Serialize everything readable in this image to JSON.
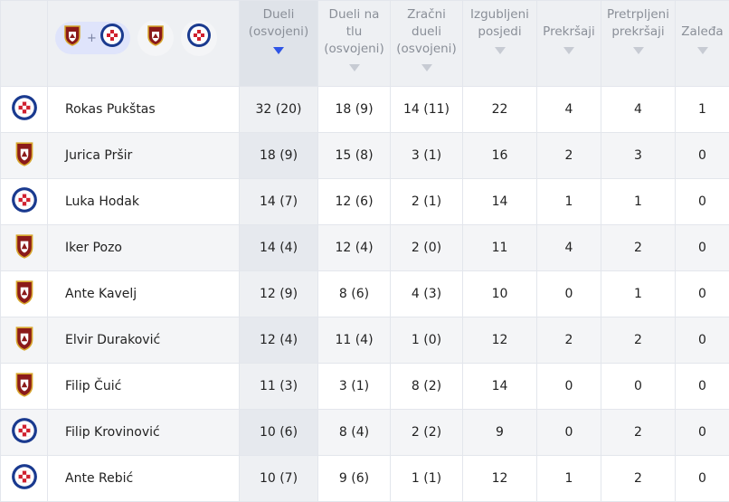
{
  "header": {
    "columns": [
      {
        "label": "Dueli (osvojeni)",
        "lines": [
          "Dueli",
          "(osvojeni)"
        ],
        "active": true
      },
      {
        "label": "Dueli na tlu (osvojeni)",
        "lines": [
          "Dueli na",
          "tlu",
          "(osvojeni)"
        ],
        "active": false
      },
      {
        "label": "Zračni dueli (osvojeni)",
        "lines": [
          "Zračni",
          "dueli",
          "(osvojeni)"
        ],
        "active": false
      },
      {
        "label": "Izgubljeni posjedi",
        "lines": [
          "Izgubljeni",
          "posjedi"
        ],
        "active": false
      },
      {
        "label": "Prekršaji",
        "lines": [
          "Prekršaji"
        ],
        "active": false
      },
      {
        "label": "Pretrpljeni prekršaji",
        "lines": [
          "Pretrpljeni",
          "prekršaji"
        ],
        "active": false
      },
      {
        "label": "Zaleđa",
        "lines": [
          "Zaleđa"
        ],
        "active": false
      }
    ],
    "filter": {
      "plus": "+",
      "options": [
        "both-teams",
        "gorica",
        "hajduk"
      ]
    }
  },
  "teams": {
    "hajduk": {
      "name": "Hajduk Split",
      "colors": [
        "#1a3a8f",
        "#d0202e",
        "#ffffff"
      ]
    },
    "gorica": {
      "name": "HNK Gorica",
      "colors": [
        "#8b1a1a",
        "#d6a52b",
        "#1a1a1a"
      ]
    }
  },
  "rows": [
    {
      "team": "hajduk",
      "player": "Rokas Pukštas",
      "duels": "32 (20)",
      "ground": "18 (9)",
      "aerial": "14 (11)",
      "lost": "22",
      "fouls": "4",
      "fouled": "4",
      "offsides": "1"
    },
    {
      "team": "gorica",
      "player": "Jurica Pršir",
      "duels": "18 (9)",
      "ground": "15 (8)",
      "aerial": "3 (1)",
      "lost": "16",
      "fouls": "2",
      "fouled": "3",
      "offsides": "0"
    },
    {
      "team": "hajduk",
      "player": "Luka Hodak",
      "duels": "14 (7)",
      "ground": "12 (6)",
      "aerial": "2 (1)",
      "lost": "14",
      "fouls": "1",
      "fouled": "1",
      "offsides": "0"
    },
    {
      "team": "gorica",
      "player": "Iker Pozo",
      "duels": "14 (4)",
      "ground": "12 (4)",
      "aerial": "2 (0)",
      "lost": "11",
      "fouls": "4",
      "fouled": "2",
      "offsides": "0"
    },
    {
      "team": "gorica",
      "player": "Ante Kavelj",
      "duels": "12 (9)",
      "ground": "8 (6)",
      "aerial": "4 (3)",
      "lost": "10",
      "fouls": "0",
      "fouled": "1",
      "offsides": "0"
    },
    {
      "team": "gorica",
      "player": "Elvir Duraković",
      "duels": "12 (4)",
      "ground": "11 (4)",
      "aerial": "1 (0)",
      "lost": "12",
      "fouls": "2",
      "fouled": "2",
      "offsides": "0"
    },
    {
      "team": "gorica",
      "player": "Filip Čuić",
      "duels": "11 (3)",
      "ground": "3 (1)",
      "aerial": "8 (2)",
      "lost": "14",
      "fouls": "0",
      "fouled": "0",
      "offsides": "0"
    },
    {
      "team": "hajduk",
      "player": "Filip Krovinović",
      "duels": "10 (6)",
      "ground": "8 (4)",
      "aerial": "2 (2)",
      "lost": "9",
      "fouls": "0",
      "fouled": "2",
      "offsides": "0"
    },
    {
      "team": "hajduk",
      "player": "Ante Rebić",
      "duels": "10 (7)",
      "ground": "9 (6)",
      "aerial": "1 (1)",
      "lost": "12",
      "fouls": "1",
      "fouled": "2",
      "offsides": "0"
    }
  ]
}
